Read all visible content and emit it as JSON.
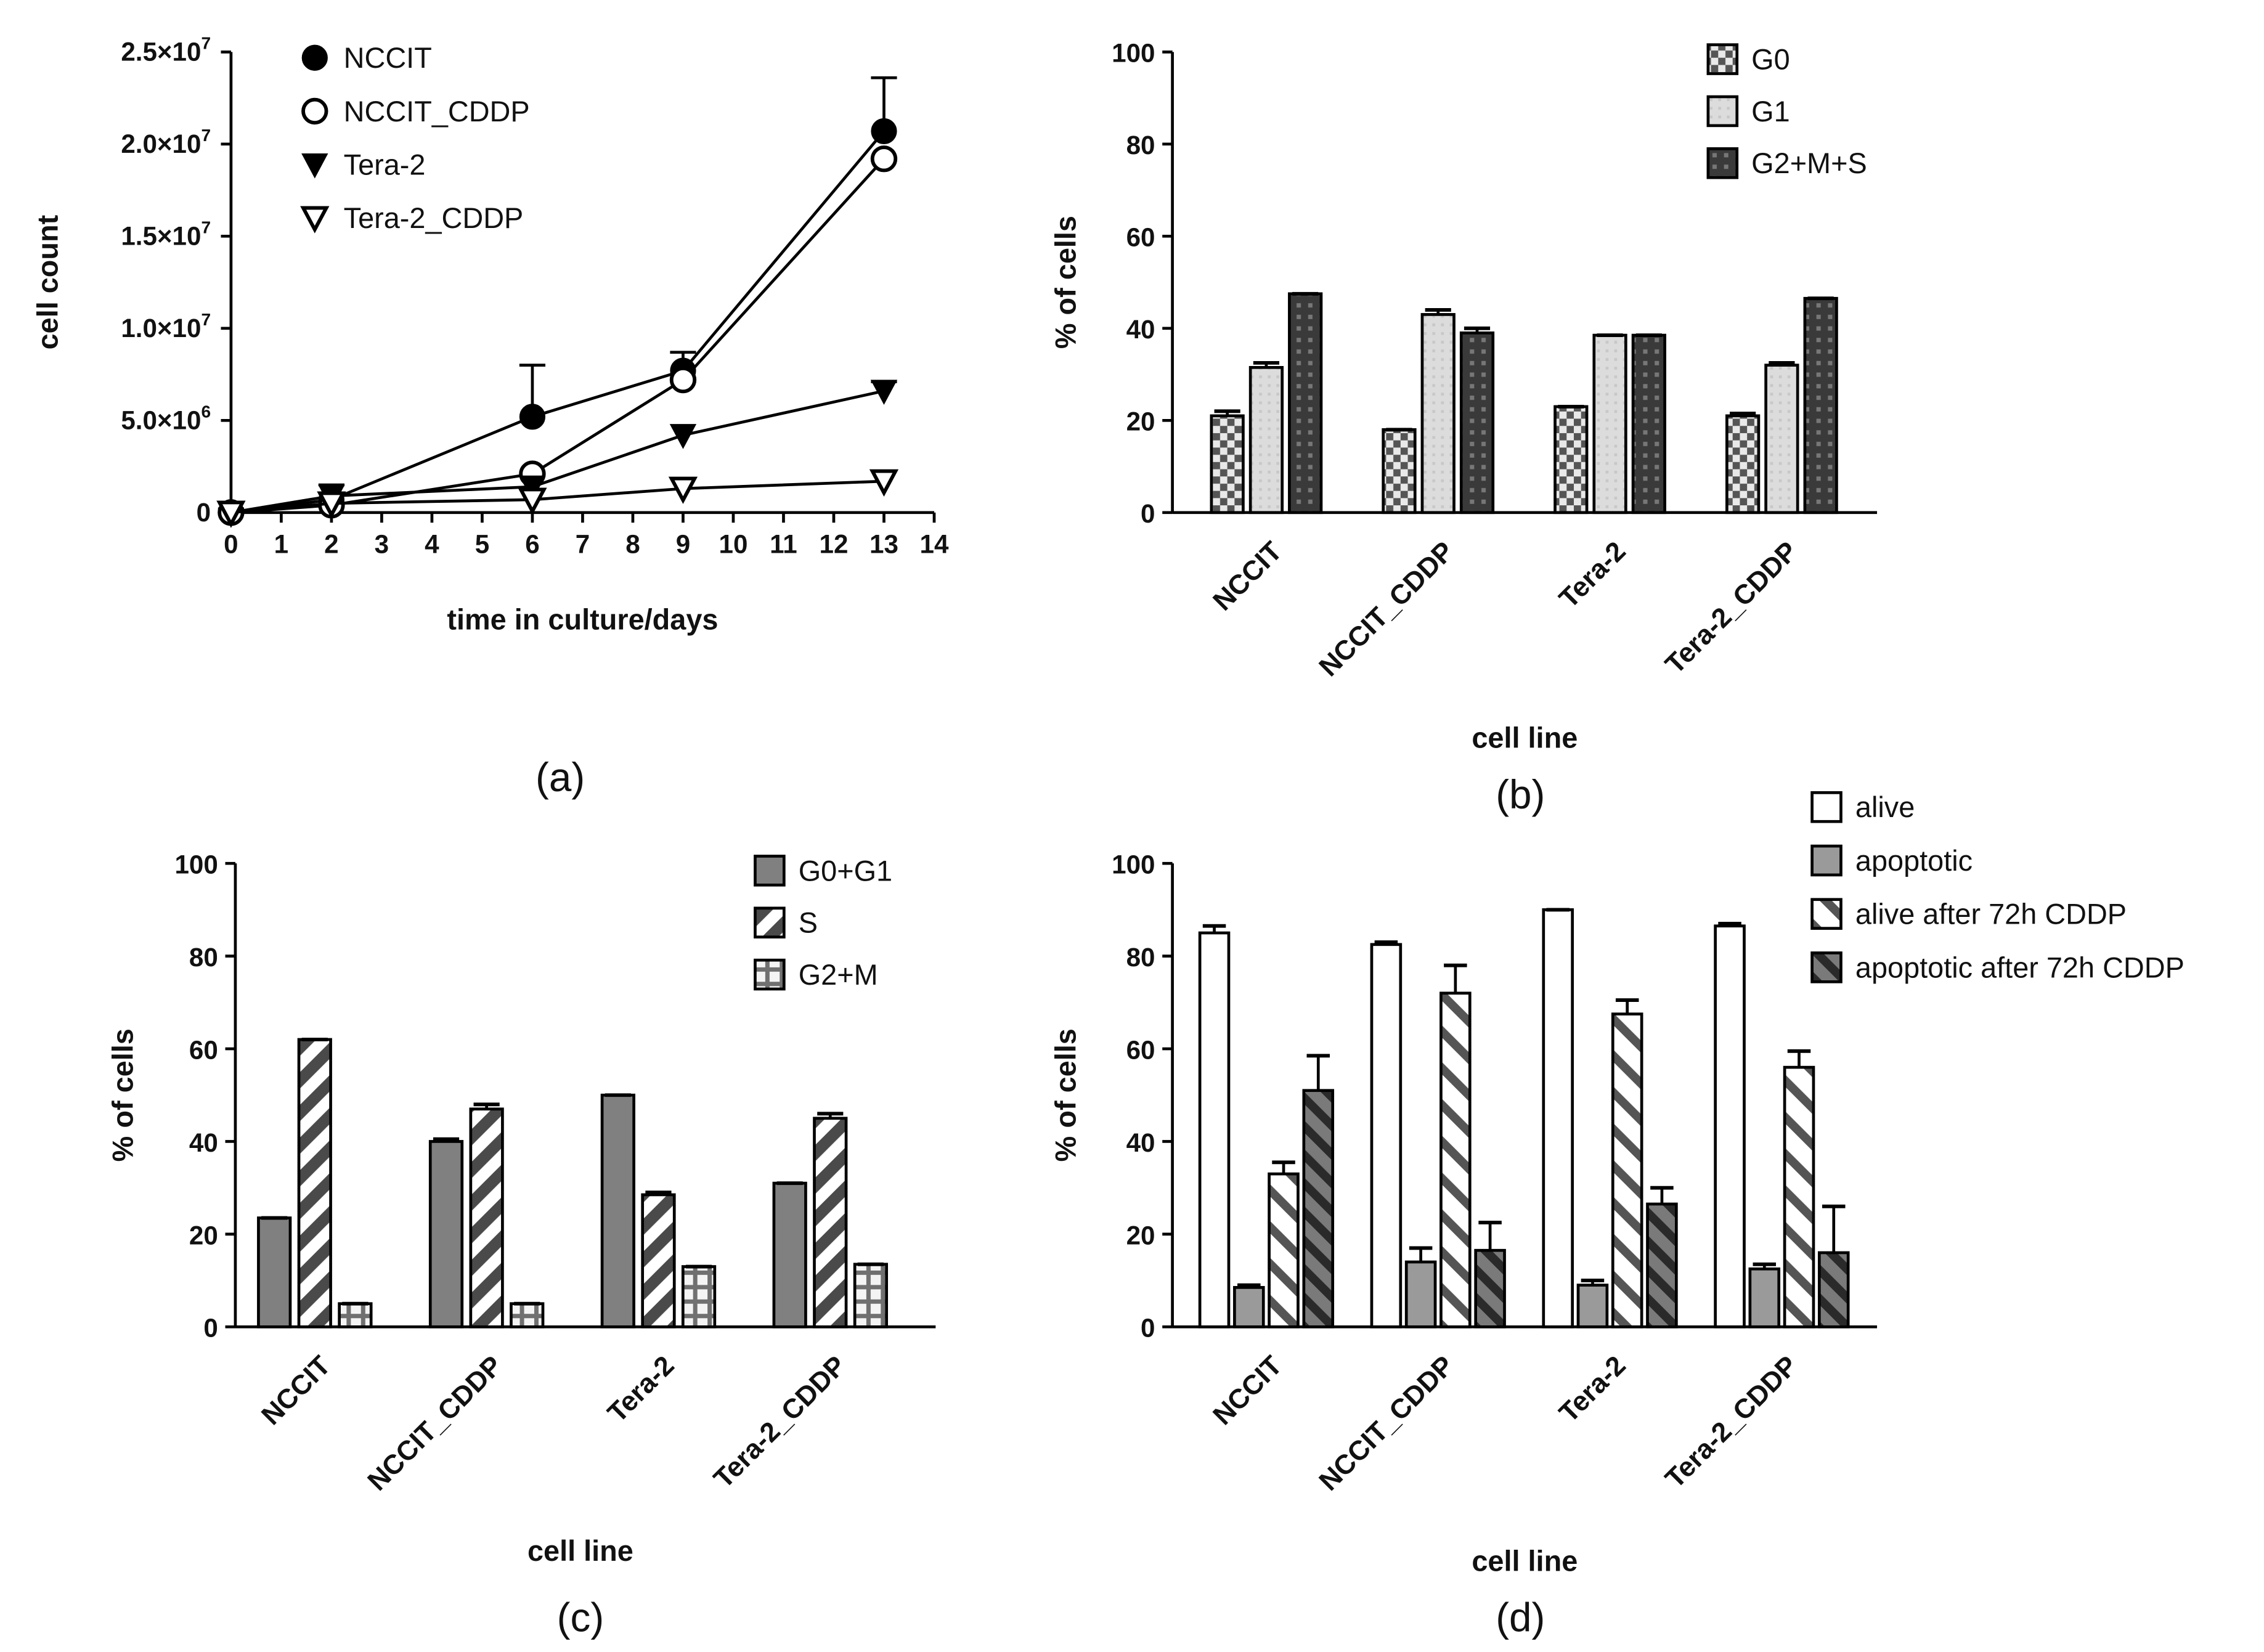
{
  "chart_data": [
    {
      "panel": "(a)",
      "type": "line",
      "xlabel": "time in culture/days",
      "ylabel": "cell count",
      "xlim": [
        0,
        14
      ],
      "ylim": [
        0,
        25000000
      ],
      "x_ticks": [
        "0",
        "1",
        "2",
        "3",
        "4",
        "5",
        "6",
        "7",
        "8",
        "9",
        "10",
        "11",
        "12",
        "13",
        "14"
      ],
      "y_ticks": [
        {
          "value": 0,
          "base": "0",
          "exp": ""
        },
        {
          "value": 5000000,
          "base": "5.0×10",
          "exp": "6"
        },
        {
          "value": 10000000,
          "base": "1.0×10",
          "exp": "7"
        },
        {
          "value": 15000000,
          "base": "1.5×10",
          "exp": "7"
        },
        {
          "value": 20000000,
          "base": "2.0×10",
          "exp": "7"
        },
        {
          "value": 25000000,
          "base": "2.5×10",
          "exp": "7"
        }
      ],
      "legend_position": "top-left",
      "x": [
        0,
        2,
        6,
        9,
        13
      ],
      "series": [
        {
          "name": "NCCIT",
          "marker": "filled-circle",
          "values": [
            0,
            700000,
            5200000,
            7700000,
            20700000
          ],
          "errors": [
            0,
            0,
            2800000,
            1000000,
            2900000
          ]
        },
        {
          "name": "NCCIT_CDDP",
          "marker": "open-circle",
          "values": [
            0,
            400000,
            2100000,
            7200000,
            19200000
          ],
          "errors": [
            0,
            0,
            0,
            0,
            0
          ]
        },
        {
          "name": "Tera-2",
          "marker": "filled-triangle-down",
          "values": [
            0,
            900000,
            1400000,
            4200000,
            6600000
          ],
          "errors": [
            200000,
            600000,
            0,
            0,
            500000
          ]
        },
        {
          "name": "Tera-2_CDDP",
          "marker": "open-triangle-down",
          "values": [
            0,
            500000,
            700000,
            1300000,
            1700000
          ],
          "errors": [
            0,
            0,
            0,
            0,
            0
          ]
        }
      ]
    },
    {
      "panel": "(b)",
      "type": "bar",
      "xlabel": "cell line",
      "ylabel": "% of cells",
      "ylim": [
        0,
        100
      ],
      "y_ticks": [
        0,
        20,
        40,
        60,
        80,
        100
      ],
      "categories": [
        "NCCIT",
        "NCCIT_CDDP",
        "Tera-2",
        "Tera-2_CDDP"
      ],
      "legend_position": "top-right",
      "series": [
        {
          "name": "G0",
          "pattern": "checker",
          "values": [
            21,
            18,
            23,
            21
          ],
          "errors": [
            1,
            0,
            0,
            0.5
          ]
        },
        {
          "name": "G1",
          "pattern": "light",
          "values": [
            31.5,
            43,
            38.5,
            32
          ],
          "errors": [
            1,
            1,
            0,
            0.5
          ]
        },
        {
          "name": "G2+M+S",
          "pattern": "dark-dots",
          "values": [
            47.5,
            39,
            38.5,
            46.5
          ],
          "errors": [
            0,
            1,
            0,
            0
          ]
        }
      ]
    },
    {
      "panel": "(c)",
      "type": "bar",
      "xlabel": "cell line",
      "ylabel": "% of cells",
      "ylim": [
        0,
        100
      ],
      "y_ticks": [
        0,
        20,
        40,
        60,
        80,
        100
      ],
      "categories": [
        "NCCIT",
        "NCCIT_CDDP",
        "Tera-2",
        "Tera-2_CDDP"
      ],
      "legend_position": "top-right",
      "series": [
        {
          "name": "G0+G1",
          "pattern": "dark-grey",
          "values": [
            23.5,
            40,
            50,
            31
          ],
          "errors": [
            0,
            0.5,
            0,
            0
          ]
        },
        {
          "name": "S",
          "pattern": "diagonal",
          "values": [
            62,
            47,
            28.5,
            45
          ],
          "errors": [
            0,
            1,
            0.5,
            1
          ]
        },
        {
          "name": "G2+M",
          "pattern": "grid",
          "values": [
            5,
            5,
            13,
            13.5
          ],
          "errors": [
            0,
            0,
            0,
            0
          ]
        }
      ]
    },
    {
      "panel": "(d)",
      "type": "bar",
      "xlabel": "cell line",
      "ylabel": "% of cells",
      "ylim": [
        0,
        100
      ],
      "y_ticks": [
        0,
        20,
        40,
        60,
        80,
        100
      ],
      "categories": [
        "NCCIT",
        "NCCIT_CDDP",
        "Tera-2",
        "Tera-2_CDDP"
      ],
      "legend_position": "top-right",
      "series": [
        {
          "name": "alive",
          "pattern": "white",
          "values": [
            85,
            82.5,
            90,
            86.5
          ],
          "errors": [
            1.5,
            0.5,
            0,
            0.5
          ]
        },
        {
          "name": "apoptotic",
          "pattern": "grey",
          "values": [
            8.5,
            14,
            9,
            12.5
          ],
          "errors": [
            0.5,
            3,
            1,
            1
          ]
        },
        {
          "name": "alive after 72h CDDP",
          "pattern": "diagonal-light",
          "values": [
            33,
            72,
            67.5,
            56
          ],
          "errors": [
            2.5,
            6,
            3,
            3.5
          ]
        },
        {
          "name": "apoptotic after 72h CDDP",
          "pattern": "diagonal-dark",
          "values": [
            51,
            16.5,
            26.5,
            16
          ],
          "errors": [
            7.5,
            6,
            3.5,
            10
          ]
        }
      ]
    }
  ]
}
